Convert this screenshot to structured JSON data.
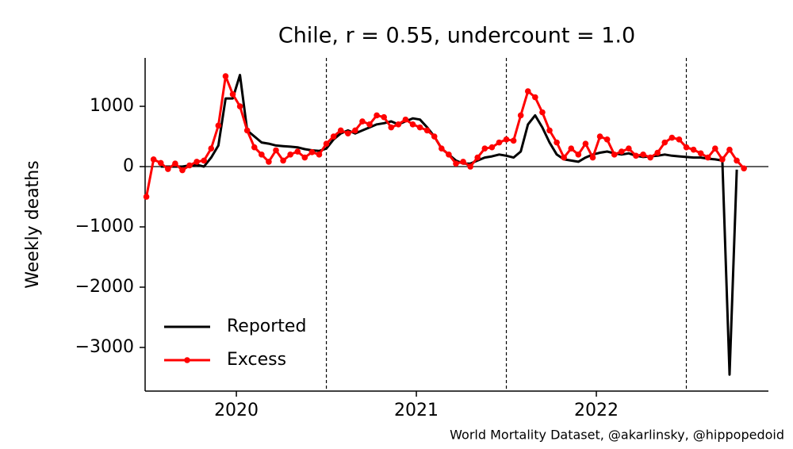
{
  "chart_data": {
    "type": "line",
    "title": "Chile, r = 0.55, undercount = 1.0",
    "ylabel": "Weekly deaths",
    "source": "World Mortality Dataset, @akarlinsky, @hippopedoid",
    "x": [
      2019.5,
      2019.54,
      2019.58,
      2019.62,
      2019.66,
      2019.7,
      2019.74,
      2019.78,
      2019.82,
      2019.86,
      2019.9,
      2019.94,
      2019.98,
      2020.02,
      2020.06,
      2020.1,
      2020.14,
      2020.18,
      2020.22,
      2020.26,
      2020.3,
      2020.34,
      2020.38,
      2020.42,
      2020.46,
      2020.5,
      2020.54,
      2020.58,
      2020.62,
      2020.66,
      2020.7,
      2020.74,
      2020.78,
      2020.82,
      2020.86,
      2020.9,
      2020.94,
      2020.98,
      2021.02,
      2021.06,
      2021.1,
      2021.14,
      2021.18,
      2021.22,
      2021.26,
      2021.3,
      2021.34,
      2021.38,
      2021.42,
      2021.46,
      2021.5,
      2021.54,
      2021.58,
      2021.62,
      2021.66,
      2021.7,
      2021.74,
      2021.78,
      2021.82,
      2021.86,
      2021.9,
      2021.94,
      2021.98,
      2022.02,
      2022.06,
      2022.1,
      2022.14,
      2022.18,
      2022.22,
      2022.26,
      2022.3,
      2022.34,
      2022.38,
      2022.42,
      2022.46,
      2022.5,
      2022.54,
      2022.58,
      2022.62,
      2022.66,
      2022.7,
      2022.74,
      2022.78,
      2022.82
    ],
    "series": [
      {
        "name": "Reported",
        "color": "#000000",
        "marker": false,
        "values": [
          null,
          null,
          0,
          0,
          0,
          0,
          20,
          30,
          0,
          150,
          350,
          1130,
          1130,
          1520,
          600,
          500,
          400,
          380,
          350,
          340,
          330,
          320,
          290,
          270,
          260,
          300,
          450,
          550,
          600,
          550,
          600,
          650,
          700,
          720,
          750,
          700,
          750,
          800,
          780,
          650,
          500,
          300,
          200,
          100,
          50,
          50,
          100,
          150,
          170,
          200,
          180,
          150,
          250,
          700,
          850,
          650,
          400,
          200,
          120,
          100,
          80,
          150,
          200,
          230,
          250,
          220,
          200,
          220,
          180,
          160,
          170,
          180,
          200,
          180,
          170,
          160,
          150,
          150,
          130,
          120,
          100,
          -3450,
          -50,
          null
        ]
      },
      {
        "name": "Excess",
        "color": "#ff0000",
        "marker": true,
        "values": [
          -500,
          120,
          60,
          -40,
          50,
          -60,
          20,
          80,
          100,
          300,
          680,
          1500,
          1200,
          1000,
          600,
          320,
          200,
          80,
          270,
          100,
          200,
          250,
          150,
          240,
          200,
          380,
          500,
          600,
          550,
          600,
          750,
          700,
          850,
          820,
          650,
          700,
          780,
          700,
          650,
          600,
          500,
          300,
          200,
          50,
          80,
          0,
          150,
          300,
          320,
          400,
          450,
          430,
          850,
          1250,
          1150,
          900,
          600,
          400,
          150,
          300,
          200,
          380,
          150,
          500,
          450,
          200,
          250,
          300,
          180,
          200,
          150,
          230,
          400,
          480,
          450,
          320,
          280,
          220,
          150,
          300,
          120,
          280,
          100,
          -30
        ]
      }
    ],
    "xlim": [
      2019.493,
      2022.956
    ],
    "xticks": [
      2020,
      2021,
      2022
    ],
    "ylim": [
      -3724,
      1803
    ],
    "yticks": [
      {
        "value": -3000,
        "label": "−3000"
      },
      {
        "value": -2000,
        "label": "−2000"
      },
      {
        "value": -1000,
        "label": "−1000"
      },
      0,
      1000
    ],
    "vlines": [
      2020.5,
      2021.5,
      2022.5
    ],
    "hline": 0,
    "legend": "lower-left"
  }
}
